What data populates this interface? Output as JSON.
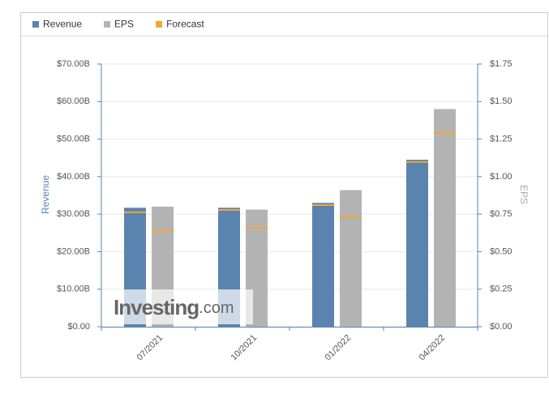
{
  "chart_data": {
    "type": "bar",
    "categories": [
      "07/2021",
      "10/2021",
      "01/2022",
      "04/2022"
    ],
    "series": [
      {
        "name": "Revenue",
        "color": "#5b83b0",
        "values": [
          31.7,
          31.7,
          33.0,
          44.5
        ],
        "forecast": [
          30.5,
          31.1,
          32.4,
          43.9
        ]
      },
      {
        "name": "EPS",
        "color": "#b3b3b3",
        "axis": "y2",
        "values": [
          0.8,
          0.78,
          0.91,
          1.45
        ],
        "forecast": [
          0.64,
          0.66,
          0.73,
          1.29
        ]
      }
    ],
    "forecast_legend": {
      "name": "Forecast",
      "color": "#f0a830"
    },
    "ylabel": "Revenue",
    "y2label": "EPS",
    "ylim": [
      0,
      70
    ],
    "yticks": [
      {
        "value": 0,
        "label": "$0.00"
      },
      {
        "value": 10,
        "label": "$10.00B"
      },
      {
        "value": 20,
        "label": "$20.00B"
      },
      {
        "value": 30,
        "label": "$30.00B"
      },
      {
        "value": 40,
        "label": "$40.00B"
      },
      {
        "value": 50,
        "label": "$50.00B"
      },
      {
        "value": 60,
        "label": "$60.00B"
      },
      {
        "value": 70,
        "label": "$70.00B"
      }
    ],
    "y2lim": [
      0,
      1.75
    ],
    "y2ticks": [
      {
        "value": 0,
        "label": "$0.00"
      },
      {
        "value": 0.25,
        "label": "$0.25"
      },
      {
        "value": 0.5,
        "label": "$0.50"
      },
      {
        "value": 0.75,
        "label": "$0.75"
      },
      {
        "value": 1,
        "label": "$1.00"
      },
      {
        "value": 1.25,
        "label": "$1.25"
      },
      {
        "value": 1.5,
        "label": "$1.50"
      },
      {
        "value": 1.75,
        "label": "$1.75"
      }
    ],
    "grid": true,
    "watermark": {
      "brand": "Investing",
      "suffix": ".com"
    }
  }
}
